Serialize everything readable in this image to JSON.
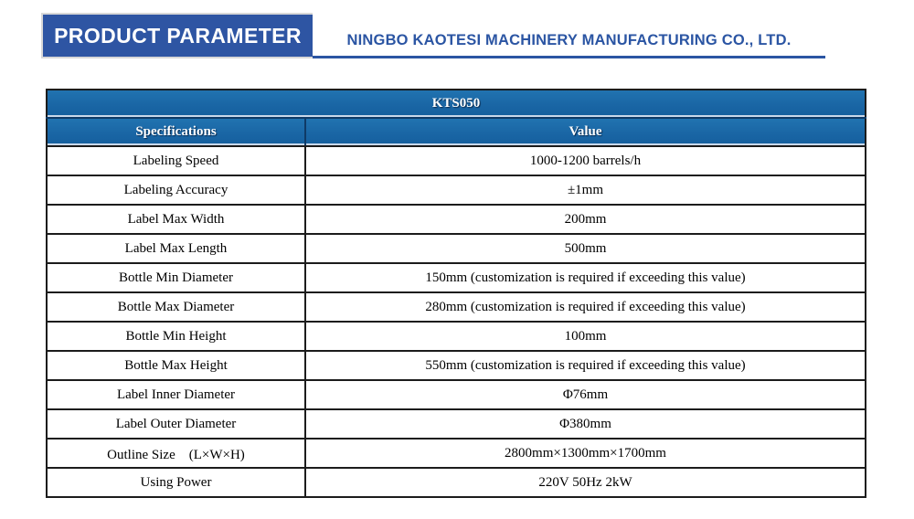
{
  "page": {
    "background": "#ffffff"
  },
  "header": {
    "title": "PRODUCT PARAMETER",
    "company": "NINGBO KAOTESI MACHINERY MANUFACTURING CO., LTD.",
    "title_box_color": "#2e55a3",
    "accent_color": "#2b55a3"
  },
  "table": {
    "model": "KTS050",
    "header_color": "#1a66a5",
    "border_color": "#1c1c1c",
    "columns": [
      "Specifications",
      "Value"
    ],
    "rows": [
      {
        "spec": "Labeling Speed",
        "value": "1000-1200 barrels/h"
      },
      {
        "spec": "Labeling Accuracy",
        "value": "±1mm"
      },
      {
        "spec": "Label Max Width",
        "value": "200mm"
      },
      {
        "spec": "Label Max Length",
        "value": "500mm"
      },
      {
        "spec": "Bottle Min Diameter",
        "value": "150mm (customization is required if exceeding this value)"
      },
      {
        "spec": "Bottle Max Diameter",
        "value": "280mm (customization is required if exceeding this value)"
      },
      {
        "spec": "Bottle Min Height",
        "value": "100mm"
      },
      {
        "spec": "Bottle Max Height",
        "value": "550mm (customization is required if exceeding this value)"
      },
      {
        "spec": "Label Inner Diameter",
        "value": "Φ76mm"
      },
      {
        "spec": "Label Outer Diameter",
        "value": "Φ380mm"
      },
      {
        "spec": "Outline Size　(L×W×H)",
        "value": "2800mm×1300mm×1700mm"
      },
      {
        "spec": "Using Power",
        "value": "220V 50Hz 2kW"
      }
    ]
  }
}
